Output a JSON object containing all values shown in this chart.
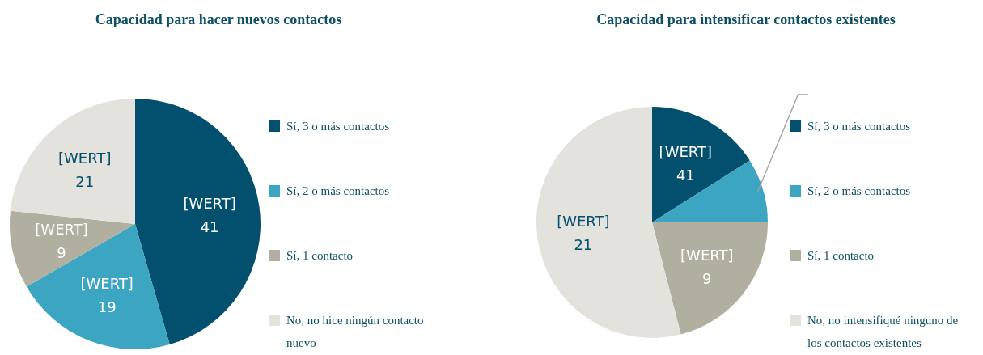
{
  "chart_data": [
    {
      "type": "pie",
      "title": "Capacidad para hacer nuevos contactos",
      "categories": [
        "Sí, 3 o más contactos",
        "Sí, 2 o más contactos",
        "Sí, 1 contacto",
        "No, no hice ningún contacto nuevo"
      ],
      "values": [
        41,
        19,
        9,
        21
      ],
      "colors": [
        "#02506e",
        "#3ca5c1",
        "#b1afa0",
        "#e3e2dd"
      ],
      "value_labels": [
        "[WERT] 41",
        "[WERT] 19",
        "[WERT] 9",
        "[WERT] 21"
      ],
      "legend": "right"
    },
    {
      "type": "pie",
      "title": "Capacidad para intensificar contactos existentes",
      "categories": [
        "Sí, 3 o más contactos",
        "Sí, 2 o más contactos",
        "Sí, 1 contacto",
        "No, no intensifiqué ninguno de los contactos existentes"
      ],
      "values": [
        16,
        9,
        21,
        54
      ],
      "colors": [
        "#02506e",
        "#3ca5c1",
        "#b1afa0",
        "#e3e2dd"
      ],
      "annotations": [
        "[WERT] 41",
        "[WERT] 9",
        "[WERT] 21"
      ],
      "legend": "right"
    }
  ]
}
